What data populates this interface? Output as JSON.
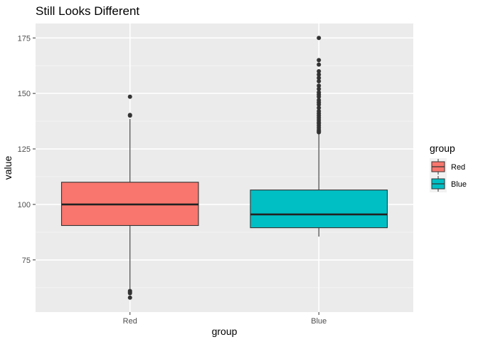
{
  "chart_data": {
    "type": "boxplot",
    "title": "Still Looks Different",
    "xlabel": "group",
    "ylabel": "value",
    "categories": [
      "Red",
      "Blue"
    ],
    "ylim": [
      51.5,
      181.5
    ],
    "y_ticks": [
      75,
      100,
      125,
      150,
      175
    ],
    "y_tick_labels": [
      "75",
      "100",
      "125",
      "150",
      "175"
    ],
    "grid": true,
    "legend": {
      "title": "group",
      "position": "right",
      "entries": [
        {
          "label": "Red",
          "color": "#F8766D"
        },
        {
          "label": "Blue",
          "color": "#00BFC4"
        }
      ]
    },
    "boxes": [
      {
        "category": "Red",
        "color": "#F8766D",
        "min": 62,
        "q1": 90.5,
        "median": 100,
        "q3": 110,
        "max": 138.5,
        "outliers": [
          148.5,
          140.3,
          140.0,
          61.0,
          60.5,
          60.0,
          58.0
        ]
      },
      {
        "category": "Blue",
        "color": "#00BFC4",
        "min": 85.5,
        "q1": 89.5,
        "median": 95.5,
        "q3": 106.5,
        "max": 132,
        "outliers": [
          175,
          165,
          163,
          160,
          158.5,
          157,
          155.5,
          153.5,
          152,
          150.5,
          149.5,
          148.5,
          147,
          146,
          145,
          143.5,
          142,
          141,
          140,
          139,
          138,
          137,
          136.5,
          135.5,
          134.5,
          133.5,
          133,
          132.5
        ]
      }
    ]
  }
}
